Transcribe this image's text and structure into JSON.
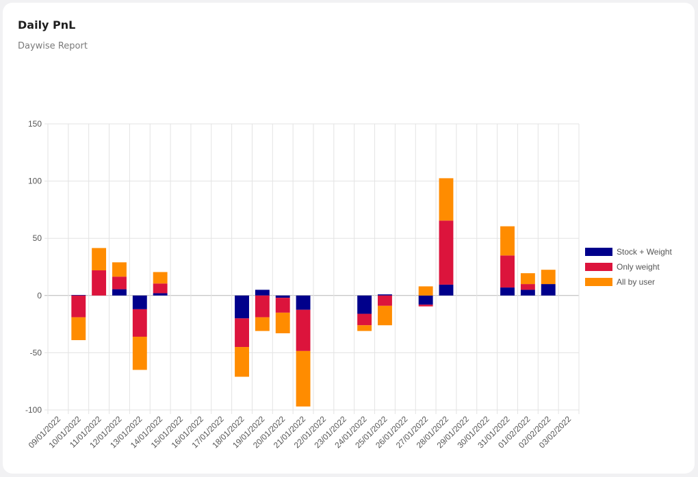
{
  "card": {
    "title": "Daily PnL",
    "subtitle": "Daywise Report"
  },
  "chart_data": {
    "type": "bar",
    "stacked": true,
    "categories": [
      "09/01/2022",
      "10/01/2022",
      "11/01/2022",
      "12/01/2022",
      "13/01/2022",
      "14/01/2022",
      "15/01/2022",
      "16/01/2022",
      "17/01/2022",
      "18/01/2022",
      "19/01/2022",
      "20/01/2022",
      "21/01/2022",
      "22/01/2022",
      "23/01/2022",
      "24/01/2022",
      "25/01/2022",
      "26/01/2022",
      "27/01/2022",
      "28/01/2022",
      "29/01/2022",
      "30/01/2022",
      "31/01/2022",
      "01/02/2022",
      "02/02/2022",
      "03/02/2022"
    ],
    "series": [
      {
        "name": "Stock + Weight",
        "color": "#00008b",
        "values": [
          0,
          0.5,
          0,
          5.5,
          -12,
          2,
          0,
          0,
          0,
          -20,
          5,
          -2,
          -12.5,
          0,
          0,
          -16,
          1,
          0,
          -8,
          9.5,
          0,
          0,
          7,
          5,
          10,
          0
        ]
      },
      {
        "name": "Only weight",
        "color": "#dc143c",
        "values": [
          0,
          -19,
          22,
          11,
          -24,
          8.5,
          0,
          0,
          0,
          -25,
          -19,
          -13,
          -36,
          0,
          0,
          -10,
          -9,
          0,
          -1.5,
          56,
          0,
          0,
          28,
          5,
          0,
          0
        ]
      },
      {
        "name": "All by user",
        "color": "#ff8c00",
        "values": [
          0,
          -20,
          19.5,
          12.5,
          -29,
          10,
          0,
          0,
          0,
          -26,
          -12,
          -18,
          -48.5,
          0,
          0,
          -5,
          -17,
          0,
          8,
          37,
          0,
          0,
          25.5,
          9.5,
          12.5,
          0
        ]
      }
    ],
    "ylim": [
      -100,
      150
    ],
    "yticks": [
      "150",
      "100",
      "50",
      "0",
      "-50",
      "-100"
    ],
    "grid": true,
    "legend": "right"
  }
}
